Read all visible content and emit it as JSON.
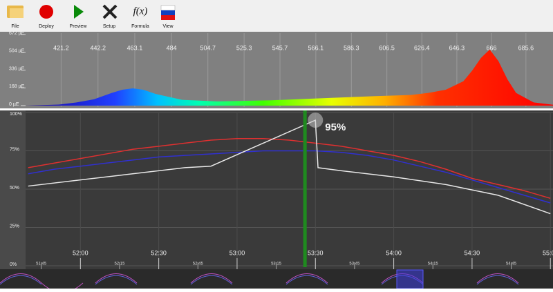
{
  "toolbar": {
    "buttons": [
      {
        "label": "File"
      },
      {
        "label": "Deploy"
      },
      {
        "label": "Preview"
      },
      {
        "label": "Setup"
      },
      {
        "label": "Formula",
        "icon_text": "f(x)"
      },
      {
        "label": "View"
      }
    ]
  },
  "spectrum": {
    "xlim": [
      401,
      701
    ],
    "ylim": [
      0,
      672
    ],
    "xticks": [
      421.2,
      442.2,
      463.1,
      484.0,
      504.7,
      525.3,
      545.7,
      566.1,
      586.3,
      606.5,
      626.4,
      646.3,
      666.0,
      685.6
    ],
    "yticks": [
      {
        "value": 672,
        "label": "672 µE"
      },
      {
        "value": 504,
        "label": "504 µE"
      },
      {
        "value": 336,
        "label": "336 µE"
      },
      {
        "value": 168,
        "label": "168 µE"
      },
      {
        "value": 0,
        "label": "0 µE"
      }
    ],
    "x": [
      401,
      420,
      430,
      440,
      450,
      456,
      462,
      468,
      475,
      490,
      510,
      540,
      570,
      600,
      620,
      630,
      640,
      650,
      655,
      660,
      665,
      670,
      675,
      680,
      690,
      701
    ],
    "values": [
      0,
      10,
      30,
      60,
      120,
      150,
      163,
      150,
      110,
      55,
      40,
      50,
      70,
      90,
      100,
      120,
      150,
      230,
      330,
      450,
      530,
      420,
      250,
      120,
      30,
      8
    ]
  },
  "timeline": {
    "xlim": [
      3099,
      3301
    ],
    "ylim": [
      0,
      100
    ],
    "xticks": [
      {
        "value": 3120,
        "label": "52:00"
      },
      {
        "value": 3150,
        "label": "52:30"
      },
      {
        "value": 3180,
        "label": "53:00"
      },
      {
        "value": 3210,
        "label": "53:30"
      },
      {
        "value": 3240,
        "label": "54:00"
      },
      {
        "value": 3270,
        "label": "54:30"
      },
      {
        "value": 3300,
        "label": "55:00"
      }
    ],
    "minor_xticks": [
      {
        "value": 3105,
        "label": "51:45"
      },
      {
        "value": 3135,
        "label": "52:15"
      },
      {
        "value": 3165,
        "label": "52:45"
      },
      {
        "value": 3195,
        "label": "53:15"
      },
      {
        "value": 3225,
        "label": "53:45"
      },
      {
        "value": 3255,
        "label": "54:15"
      },
      {
        "value": 3285,
        "label": "54:45"
      }
    ],
    "yticks": [
      {
        "value": 100,
        "label": "100%"
      },
      {
        "value": 75,
        "label": "75%"
      },
      {
        "value": 50,
        "label": "50%"
      },
      {
        "value": 25,
        "label": "25%"
      },
      {
        "value": 0,
        "label": "0%"
      }
    ],
    "cursor": 3206,
    "handle": {
      "value": 95,
      "label": "95%"
    },
    "series": [
      {
        "color": "#e03030",
        "x": [
          3100,
          3110,
          3120,
          3130,
          3140,
          3150,
          3160,
          3170,
          3180,
          3190,
          3200,
          3210,
          3220,
          3230,
          3240,
          3250,
          3260,
          3270,
          3280,
          3290,
          3300
        ],
        "values": [
          64,
          67,
          70,
          73,
          76,
          78,
          80,
          82,
          83,
          83,
          82,
          80,
          78,
          75,
          72,
          68,
          63,
          57,
          53,
          49,
          44
        ]
      },
      {
        "color": "#3030d0",
        "x": [
          3100,
          3110,
          3120,
          3130,
          3140,
          3150,
          3160,
          3170,
          3180,
          3190,
          3200,
          3210,
          3220,
          3230,
          3240,
          3250,
          3260,
          3270,
          3280,
          3290,
          3300
        ],
        "values": [
          60,
          63,
          65,
          67,
          69,
          71,
          72,
          73,
          74,
          75,
          75,
          75,
          74,
          72,
          69,
          65,
          61,
          56,
          51,
          46,
          41
        ]
      },
      {
        "color": "#e8e8e8",
        "x": [
          3100,
          3120,
          3140,
          3160,
          3170,
          3210,
          3211,
          3220,
          3240,
          3260,
          3280,
          3300
        ],
        "values": [
          52,
          56,
          60,
          64,
          65,
          95,
          64,
          62,
          58,
          53,
          46,
          34
        ]
      }
    ]
  }
}
